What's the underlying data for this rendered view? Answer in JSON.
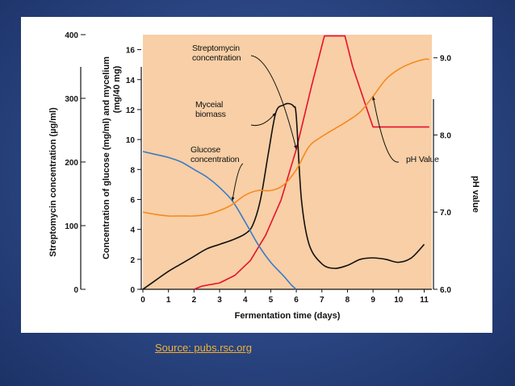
{
  "source_caption": "Source:  pubs.rsc.org",
  "chart_data": {
    "type": "line",
    "xlabel": "Fermentation time (days)",
    "x_ticks": [
      0,
      1,
      2,
      3,
      4,
      5,
      6,
      7,
      8,
      9,
      10,
      11
    ],
    "xlim": [
      0,
      11.3
    ],
    "y_axes": {
      "outer": {
        "label": "Streptomycin concentration (µg/ml)",
        "ticks": [
          0,
          100,
          200,
          300,
          400
        ],
        "range": [
          0,
          400
        ]
      },
      "inner": {
        "label_line1": "Concentration of glucose (mg/ml) and mycelium",
        "label_line2": "(mg/40 mg)",
        "ticks": [
          0,
          2,
          4,
          6,
          8,
          10,
          12,
          14,
          16
        ],
        "range": [
          0,
          17
        ]
      },
      "right": {
        "label": "pH value",
        "ticks": [
          "6.0",
          "7.0",
          "8.0",
          "9.0"
        ],
        "range": [
          6.0,
          9.3
        ]
      }
    },
    "series": [
      {
        "name": "Streptomycin concentration",
        "axis": "outer",
        "color": "#e8102e",
        "x": [
          2.0,
          2.3,
          3.0,
          3.6,
          4.2,
          4.8,
          5.4,
          6.0,
          6.6,
          7.1,
          7.9,
          8.2,
          9.0,
          10.0,
          11.2
        ],
        "y": [
          0,
          5,
          10,
          22,
          45,
          85,
          140,
          220,
          320,
          398,
          398,
          350,
          255,
          255,
          255
        ]
      },
      {
        "name": "Myceial biomass",
        "axis": "inner",
        "color": "#111111",
        "x": [
          0.0,
          0.5,
          1.0,
          1.5,
          2.0,
          2.5,
          3.0,
          3.5,
          4.0,
          4.3,
          4.6,
          4.9,
          5.2,
          5.5,
          5.7,
          5.9,
          6.0,
          6.2,
          6.5,
          7.0,
          7.5,
          8.0,
          8.5,
          9.0,
          9.5,
          10.0,
          10.5,
          11.0
        ],
        "y": [
          0.0,
          0.6,
          1.2,
          1.7,
          2.2,
          2.7,
          3.0,
          3.3,
          3.7,
          4.3,
          6.0,
          9.0,
          11.8,
          12.3,
          12.4,
          12.2,
          11.5,
          6.0,
          3.0,
          1.7,
          1.4,
          1.6,
          2.0,
          2.1,
          2.0,
          1.8,
          2.1,
          3.0
        ]
      },
      {
        "name": "Glucose concentration",
        "axis": "inner",
        "color": "#3a7ac8",
        "x": [
          0,
          0.5,
          1.0,
          1.5,
          2.0,
          2.5,
          3.0,
          3.5,
          4.0,
          4.5,
          5.0,
          5.5,
          5.8,
          6.0
        ],
        "y": [
          9.2,
          9.0,
          8.8,
          8.5,
          8.0,
          7.5,
          6.8,
          5.9,
          4.5,
          3.0,
          1.8,
          0.9,
          0.3,
          0.0
        ]
      },
      {
        "name": "pH Value",
        "axis": "right",
        "color": "#f5891f",
        "x": [
          0,
          0.5,
          1.0,
          1.5,
          2.0,
          2.5,
          3.0,
          3.5,
          4.0,
          4.5,
          5.0,
          5.5,
          6.0,
          6.5,
          7.0,
          7.5,
          8.0,
          8.5,
          9.0,
          9.5,
          10.0,
          10.5,
          11.0,
          11.2
        ],
        "y": [
          7.0,
          6.97,
          6.95,
          6.95,
          6.95,
          6.97,
          7.02,
          7.1,
          7.22,
          7.28,
          7.28,
          7.35,
          7.55,
          7.85,
          7.98,
          8.08,
          8.18,
          8.3,
          8.5,
          8.72,
          8.85,
          8.93,
          8.98,
          8.98
        ]
      }
    ],
    "annotations": [
      {
        "series": "Streptomycin concentration",
        "lines": [
          "Streptomycin",
          "concentration"
        ]
      },
      {
        "series": "Myceial biomass",
        "lines": [
          "Myceial",
          "biomass"
        ]
      },
      {
        "series": "Glucose concentration",
        "lines": [
          "Glucose",
          "concentration"
        ]
      },
      {
        "series": "pH Value",
        "lines": [
          "pH Value"
        ]
      }
    ],
    "colors": {
      "plot_background": "#f8cfa6",
      "slide_background": "#2a4582",
      "caption": "#f2b233"
    }
  }
}
